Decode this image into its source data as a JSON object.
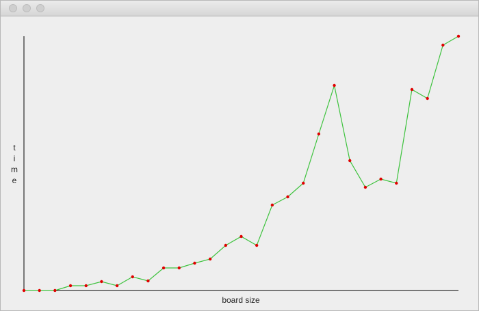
{
  "chart_data": {
    "type": "line",
    "xlabel": "board size",
    "ylabel": "time",
    "values": [
      0,
      0,
      0,
      7,
      7,
      13,
      7,
      20,
      14,
      33,
      33,
      40,
      46,
      66,
      79,
      66,
      125,
      137,
      157,
      229,
      300,
      190,
      151,
      163,
      157,
      294,
      281,
      359,
      372
    ],
    "ylim": [
      0,
      372
    ],
    "line_color": "#3cc23c",
    "marker_color": "#e00000"
  }
}
